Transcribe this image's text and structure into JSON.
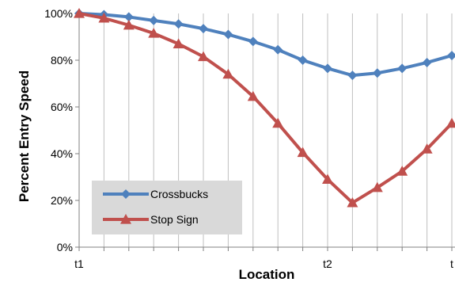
{
  "chart_data": {
    "type": "line",
    "xlabel": "Location",
    "ylabel": "Percent Entry Speed",
    "ylim": [
      0,
      100
    ],
    "yticks": [
      0,
      20,
      40,
      60,
      80,
      100
    ],
    "ytick_labels": [
      "0%",
      "20%",
      "40%",
      "60%",
      "80%",
      "100%"
    ],
    "x": [
      1,
      2,
      3,
      4,
      5,
      6,
      7,
      8,
      9,
      10,
      11,
      12,
      13,
      14,
      15,
      16
    ],
    "xtick_labels": [
      {
        "x": 1,
        "label": "t1"
      },
      {
        "x": 11,
        "label": "t2"
      },
      {
        "x": 16,
        "label": "t"
      }
    ],
    "grid": "vertical",
    "legend_position": "bottom-left",
    "series": [
      {
        "name": "Crossbucks",
        "color": "#4f81bd",
        "marker": "diamond",
        "values": [
          100,
          99.5,
          98.5,
          97,
          95.5,
          93.5,
          91,
          88,
          84.5,
          80,
          76.5,
          73.5,
          74.5,
          76.5,
          79,
          82
        ]
      },
      {
        "name": "Stop Sign",
        "color": "#c0504d",
        "marker": "triangle",
        "values": [
          100,
          98,
          95,
          91.5,
          87,
          81.5,
          74,
          64.5,
          53,
          40.5,
          29,
          19,
          25.5,
          32.5,
          42,
          53
        ]
      }
    ]
  }
}
